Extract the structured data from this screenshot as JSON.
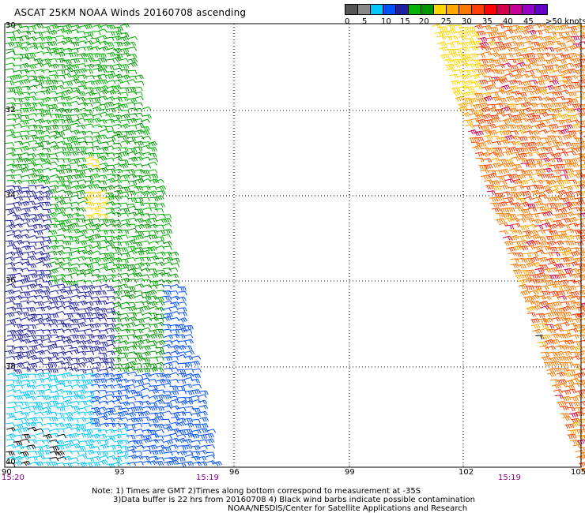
{
  "title": "ASCAT 25KM NOAA Winds 20160708 ascending",
  "legend": {
    "labels": [
      "0",
      "5",
      "10",
      "15",
      "20",
      "25",
      "30",
      "35",
      "40",
      "45",
      ">50 knots"
    ],
    "colors": [
      "#555555",
      "#888888",
      "#00c8ff",
      "#0050ff",
      "#1e1ea0",
      "#00b400",
      "#009600",
      "#ffd700",
      "#ffaa00",
      "#ff7800",
      "#ff3c00",
      "#ff0000",
      "#d2004b",
      "#c80096",
      "#9600c8",
      "#6400c8"
    ]
  },
  "map": {
    "lat_labels": [
      "30",
      "32",
      "34",
      "36",
      "38",
      "40"
    ],
    "lon_labels": [
      "90",
      "93",
      "96",
      "99",
      "102",
      "105"
    ],
    "time_labels": [
      "15:20",
      "15:19",
      "15:19"
    ]
  },
  "notes": {
    "line1": "Note: 1) Times are GMT 2)Times along bottom correspond to measurement at -35S",
    "line2": "3)Data buffer is 22 hrs from 20160708 4) Black wind barbs indicate possible contamination",
    "line3": "NOAA/NESDIS/Center for Satellite Applications and Research"
  }
}
